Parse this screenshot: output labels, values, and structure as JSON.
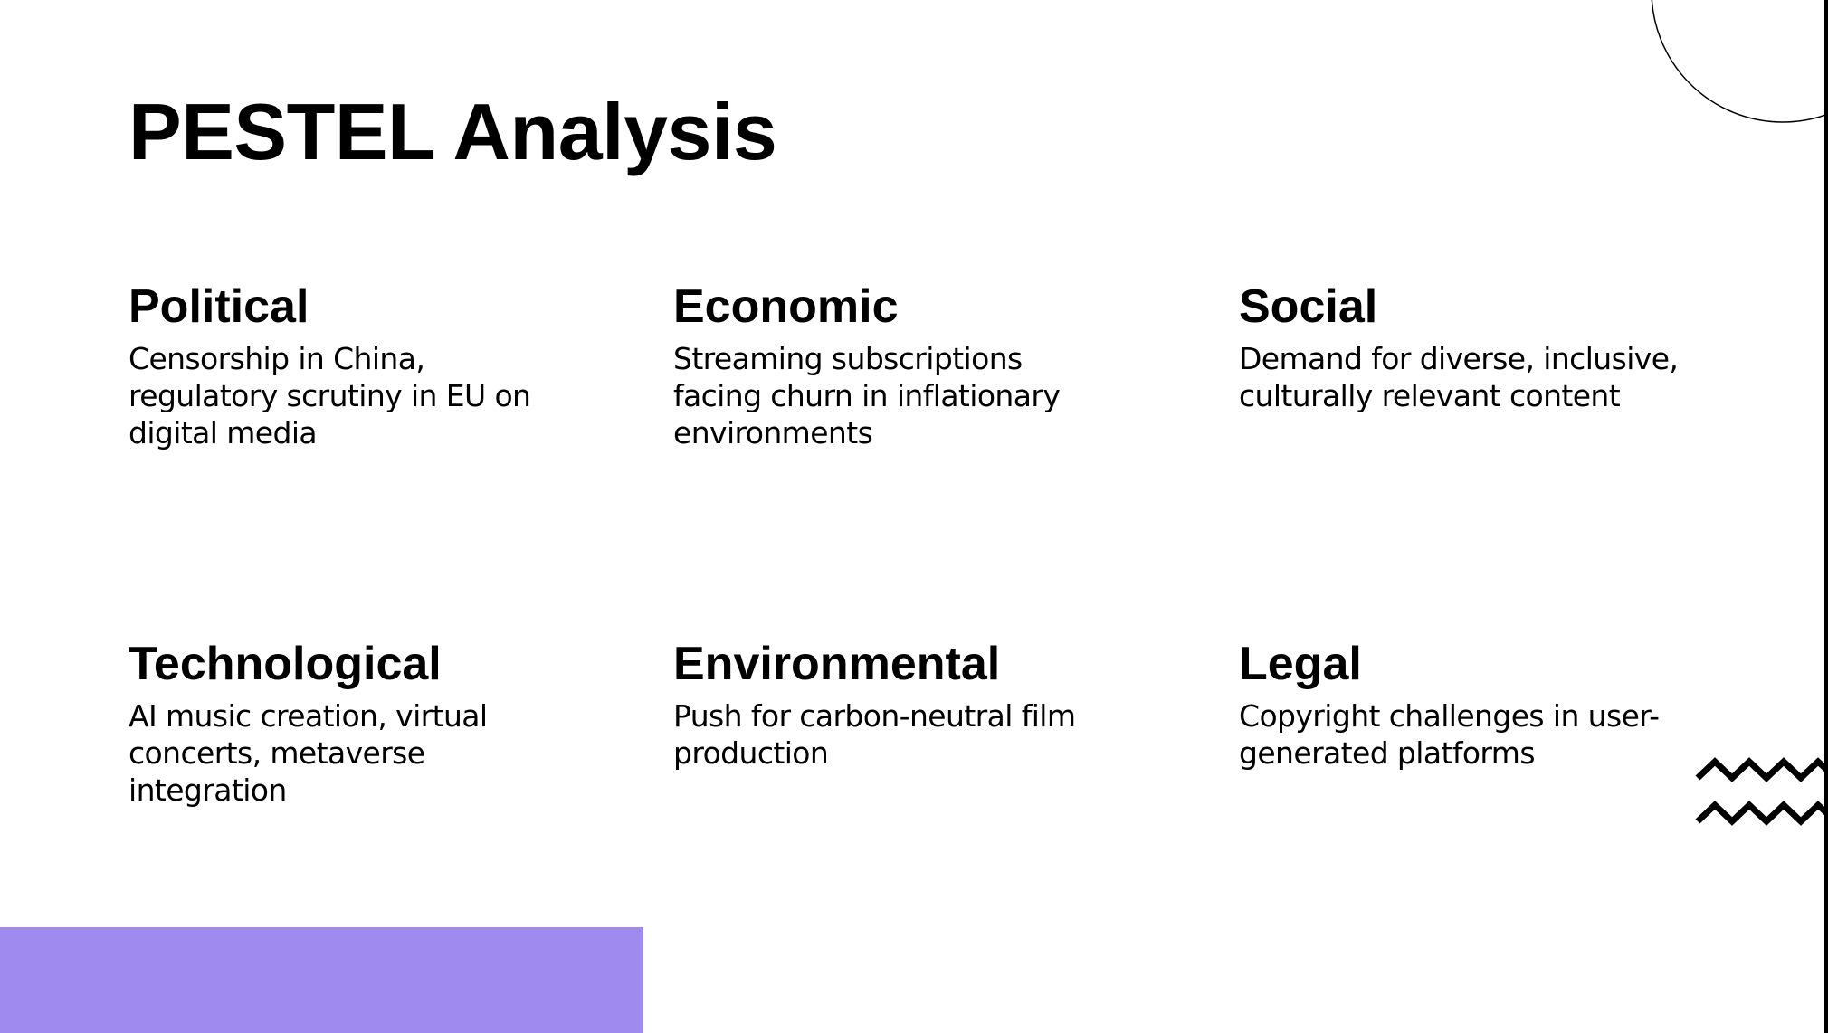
{
  "slide": {
    "title": "PESTEL Analysis",
    "factors": [
      {
        "heading": "Political",
        "text": "Censorship in China, regulatory scrutiny in EU on digital media"
      },
      {
        "heading": "Economic",
        "text": "Streaming subscriptions facing churn in inflationary environments"
      },
      {
        "heading": "Social",
        "text": "Demand for diverse, inclusive, culturally relevant content"
      },
      {
        "heading": "Technological",
        "text": "AI music creation, virtual concerts, metaverse integration"
      },
      {
        "heading": "Environmental",
        "text": "Push for carbon-neutral film production"
      },
      {
        "heading": "Legal",
        "text": "Copyright challenges in user-generated platforms"
      }
    ]
  },
  "decorations": {
    "accent_color": "#9f8aef",
    "line_color": "#000000",
    "shapes": [
      "circle-outline",
      "zigzag-lines",
      "accent-block"
    ]
  }
}
